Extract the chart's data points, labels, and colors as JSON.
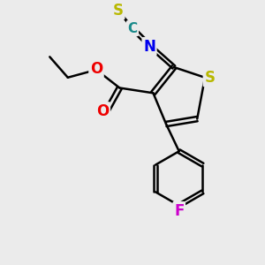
{
  "background_color": "#ebebeb",
  "atom_colors": {
    "S": "#b8b800",
    "N": "#0000ee",
    "O": "#ee0000",
    "F": "#cc00cc",
    "C": "#1a8a8a",
    "default": "#000000"
  },
  "bond_color": "#000000",
  "bond_width": 1.8,
  "font_size_atoms": 11,
  "fig_width": 3.0,
  "fig_height": 3.0,
  "dpi": 100
}
